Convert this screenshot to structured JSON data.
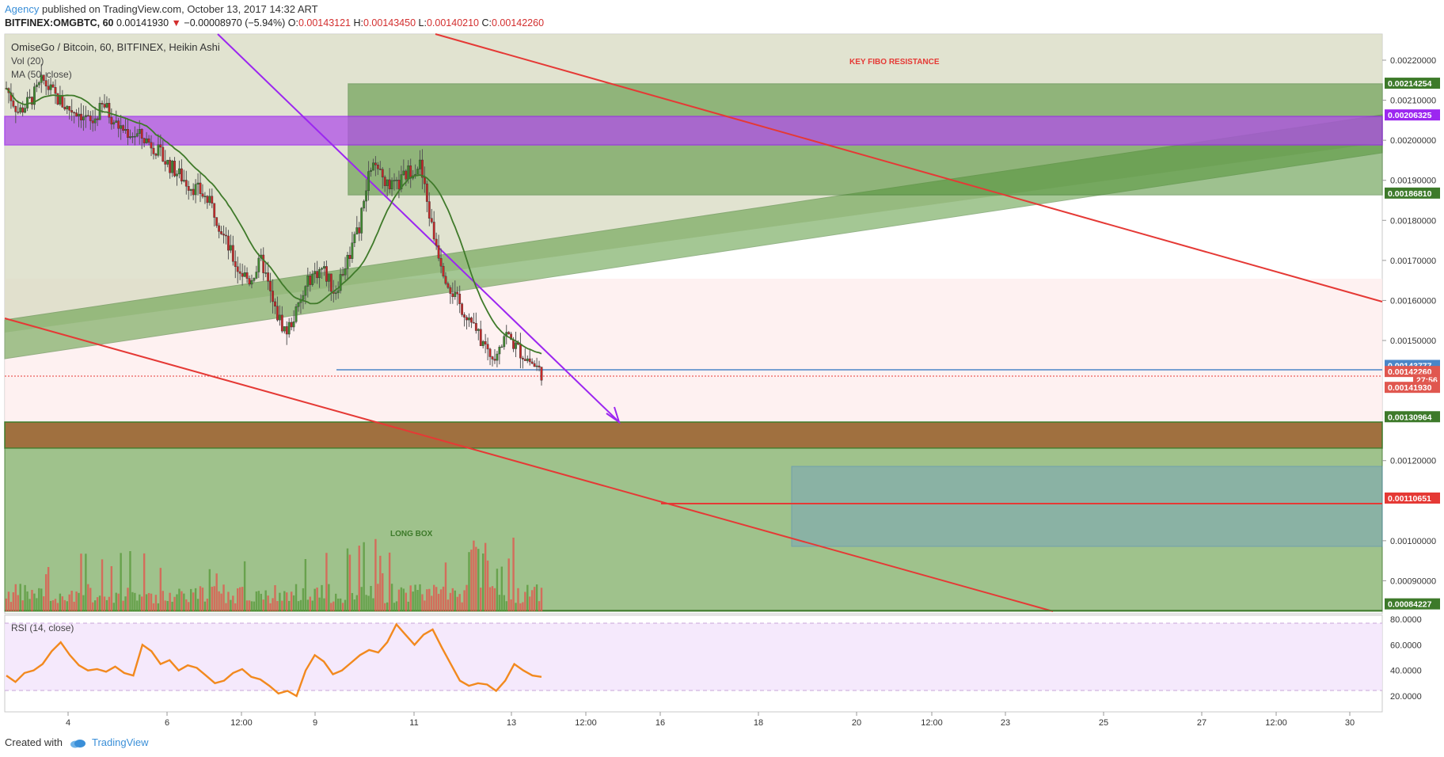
{
  "header": {
    "agency": "Agency",
    "published": "published on TradingView.com, October 13, 2017 14:32 ART",
    "symbol": "BITFINEX:OMGBTC, 60",
    "last": "0.00141930",
    "arrow": "▼",
    "change": "−0.00008970 (−5.94%)",
    "o_label": "O:",
    "o": "0.00143121",
    "h_label": "H:",
    "h": "0.00143450",
    "l_label": "L:",
    "l": "0.00140210",
    "c_label": "C:",
    "c": "0.00142260"
  },
  "legend": {
    "title": "OmiseGo / Bitcoin, 60, BITFINEX, Heikin Ashi",
    "vol": "Vol (20)",
    "ma": "MA (50, close)",
    "rsi": "RSI (14, close)"
  },
  "annotations": {
    "fibo": "KEY FIBO RESISTANCE",
    "long_box": "LONG BOX"
  },
  "footer": {
    "created": "Created with",
    "brand": "TradingView"
  },
  "chart_data": {
    "type": "candlestick",
    "yaxis_ticks": [
      "0.00220000",
      "0.00210000",
      "0.00200000",
      "0.00190000",
      "0.00180000",
      "0.00170000",
      "0.00160000",
      "0.00150000",
      "0.00120000",
      "0.00100000",
      "0.00090000"
    ],
    "price_tags": [
      {
        "label": "0.00214254",
        "value": 0.00214254,
        "color": "#3d7a2a"
      },
      {
        "label": "0.00206325",
        "value": 0.00206325,
        "color": "#9c27f0"
      },
      {
        "label": "0.00186810",
        "value": 0.0018681,
        "color": "#3d7a2a"
      },
      {
        "label": "0.00143777",
        "value": 0.00143777,
        "color": "#4a86c8"
      },
      {
        "label": "0.00142260",
        "value": 0.0014226,
        "color": "#e0574f"
      },
      {
        "label": "27:56",
        "value": 0.0014025,
        "color": "#e0574f"
      },
      {
        "label": "0.00141930",
        "value": 0.001383,
        "color": "#e0574f"
      },
      {
        "label": "0.00130964",
        "value": 0.00130964,
        "color": "#3d7a2a"
      },
      {
        "label": "0.00110651",
        "value": 0.00110651,
        "color": "#e53935"
      },
      {
        "label": "0.00084227",
        "value": 0.00084227,
        "color": "#3d7a2a"
      }
    ],
    "xaxis_ticks": [
      "4",
      "6",
      "12:00",
      "9",
      "11",
      "13",
      "12:00",
      "16",
      "18",
      "20",
      "12:00",
      "23",
      "25",
      "27",
      "12:00",
      "30"
    ],
    "rsi_ticks": [
      "80.0000",
      "60.0000",
      "40.0000",
      "20.0000"
    ],
    "rsi_levels": [
      70,
      30
    ],
    "price_path": [
      0.00213,
      0.00207,
      0.0021,
      0.00215,
      0.00211,
      0.00208,
      0.00207,
      0.00204,
      0.00209,
      0.00204,
      0.00202,
      0.00201,
      0.00199,
      0.00195,
      0.00192,
      0.00189,
      0.00187,
      0.00183,
      0.00175,
      0.00168,
      0.00165,
      0.0017,
      0.00158,
      0.00152,
      0.00158,
      0.00166,
      0.00168,
      0.00162,
      0.0017,
      0.00178,
      0.00194,
      0.0019,
      0.00188,
      0.00192,
      0.00194,
      0.00178,
      0.00167,
      0.0016,
      0.00156,
      0.0015,
      0.00146,
      0.00152,
      0.00148,
      0.00145,
      0.00142
    ],
    "rsi_path": [
      36,
      31,
      38,
      40,
      45,
      55,
      62,
      52,
      44,
      40,
      41,
      39,
      43,
      38,
      36,
      60,
      55,
      45,
      48,
      40,
      44,
      42,
      36,
      30,
      32,
      38,
      41,
      35,
      33,
      28,
      22,
      24,
      20,
      40,
      52,
      47,
      37,
      40,
      46,
      52,
      56,
      54,
      62,
      76,
      68,
      60,
      68,
      72,
      58,
      45,
      32,
      28,
      30,
      29,
      24,
      32,
      45,
      40,
      36,
      35
    ]
  }
}
